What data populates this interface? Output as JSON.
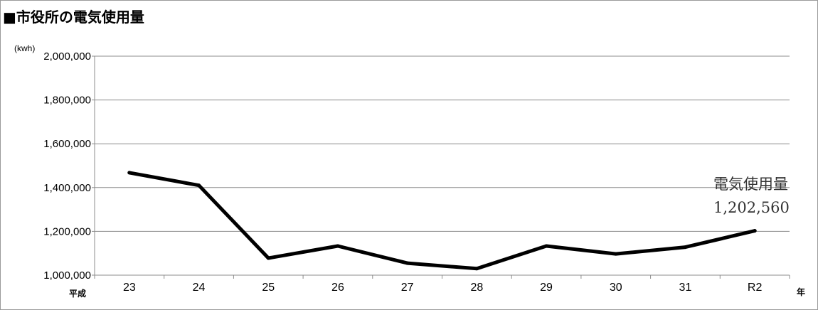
{
  "chart_data": {
    "type": "line",
    "title": "■市役所の電気使用量",
    "ylabel": "(kwh)",
    "xlabel_prefix": "平成",
    "xlabel_suffix": "年",
    "categories": [
      "23",
      "24",
      "25",
      "26",
      "27",
      "28",
      "29",
      "30",
      "31",
      "R2"
    ],
    "series": [
      {
        "values": [
          1468000,
          1410000,
          1078000,
          1133000,
          1055000,
          1030000,
          1133000,
          1097000,
          1128000,
          1202560
        ],
        "color": "#000000"
      }
    ],
    "ylim": [
      1000000,
      2000000
    ],
    "yticks": [
      1000000,
      1200000,
      1400000,
      1600000,
      1800000,
      2000000
    ],
    "ytick_labels": [
      "1,000,000",
      "1,200,000",
      "1,400,000",
      "1,600,000",
      "1,800,000",
      "2,000,000"
    ],
    "grid": true,
    "legend": "none",
    "annotation": {
      "label": "電気使用量",
      "value": "1,202,560"
    }
  }
}
